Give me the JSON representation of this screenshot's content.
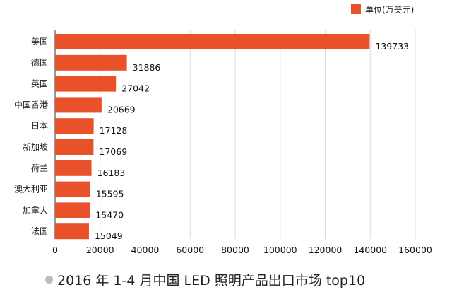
{
  "chart_data": {
    "type": "bar",
    "orientation": "horizontal",
    "categories": [
      "美国",
      "德国",
      "英国",
      "中国香港",
      "日本",
      "新加坡",
      "荷兰",
      "澳大利亚",
      "加拿大",
      "法国"
    ],
    "values": [
      139733,
      31886,
      27042,
      20669,
      17128,
      17069,
      16183,
      15595,
      15470,
      15049
    ],
    "value_labels": [
      "139733",
      "31886",
      "27042",
      "20669",
      "17128",
      "17069",
      "16183",
      "15595",
      "15470",
      "15049"
    ],
    "x_ticks": [
      "0",
      "20000",
      "40000",
      "60000",
      "80000",
      "100000",
      "120000",
      "140000",
      "160000"
    ],
    "xlim": [
      0,
      160000
    ],
    "grid": "vertical",
    "legend": {
      "label": "单位(万美元)",
      "placement": "top-right"
    },
    "title": "2016 年 1-4 月中国 LED 照明产品出口市场 top10",
    "bar_color": "#e8512a"
  }
}
